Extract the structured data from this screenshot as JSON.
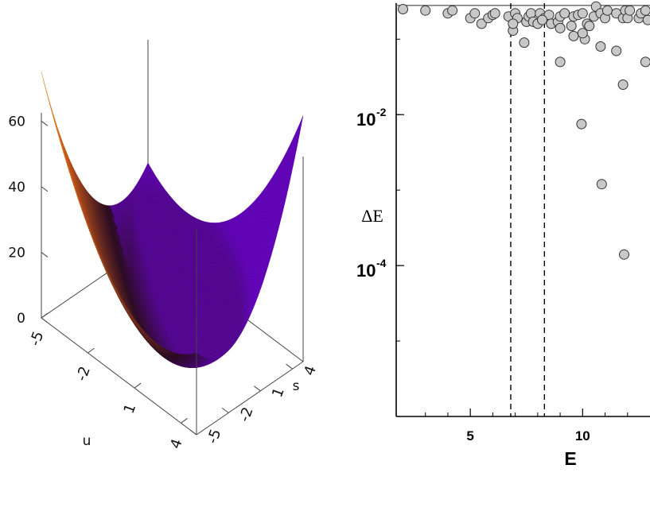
{
  "chart_data": [
    {
      "type": "surface",
      "title": "",
      "function": "z = u^2 + s^2 + u*s",
      "axes": {
        "u": {
          "label": "u",
          "range": [
            -5,
            5
          ],
          "tick_labels": [
            "-5",
            "-2",
            "1",
            "4"
          ]
        },
        "s": {
          "label": "s",
          "range": [
            -5,
            5
          ],
          "tick_labels": [
            "-5",
            "-2",
            "1",
            "4"
          ]
        },
        "z": {
          "label": "",
          "range": [
            0,
            62.5
          ],
          "tick_labels": [
            "0",
            "20",
            "40",
            "60"
          ]
        }
      },
      "colormap": [
        "#7a00ff",
        "#2a0a20",
        "#c85818",
        "#ffd040"
      ]
    },
    {
      "type": "scatter",
      "title": "",
      "xlabel": "E",
      "ylabel": "ΔE",
      "xlim": [
        1.7,
        13.0
      ],
      "ylim": [
        1e-06,
        0.3
      ],
      "yscale": "log",
      "x_ticks": [
        "5",
        "10"
      ],
      "y_ticks": [
        {
          "base": "10",
          "exponent": "-2"
        },
        {
          "base": "10",
          "exponent": "-4"
        }
      ],
      "vertical_lines": [
        6.8,
        8.3
      ],
      "horizontal_line": 0.28,
      "marker_fill": "#c8c8c8",
      "marker_edge": "#333333",
      "x": [
        2.0,
        3.0,
        4.0,
        4.2,
        5.0,
        5.2,
        5.5,
        5.8,
        6.0,
        6.1,
        6.7,
        6.9,
        7.0,
        7.1,
        7.5,
        7.6,
        7.7,
        7.8,
        8.0,
        8.1,
        8.3,
        8.5,
        8.6,
        8.9,
        9.0,
        9.2,
        9.5,
        9.6,
        9.8,
        10.0,
        10.2,
        10.3,
        10.5,
        10.6,
        10.8,
        11.0,
        11.1,
        11.5,
        11.8,
        11.9,
        12.0,
        12.1,
        12.5,
        12.6,
        12.8,
        12.9,
        7.4,
        8.2,
        9.0,
        9.6,
        10.1,
        10.8,
        11.5,
        11.8,
        12.8,
        9.0,
        9.95,
        10.85,
        11.85,
        6.9,
        10.0
      ],
      "y": [
        0.25,
        0.24,
        0.22,
        0.24,
        0.19,
        0.22,
        0.16,
        0.19,
        0.21,
        0.22,
        0.2,
        0.13,
        0.22,
        0.19,
        0.17,
        0.2,
        0.22,
        0.17,
        0.16,
        0.22,
        0.19,
        0.21,
        0.16,
        0.17,
        0.2,
        0.22,
        0.15,
        0.2,
        0.21,
        0.22,
        0.16,
        0.15,
        0.2,
        0.27,
        0.22,
        0.19,
        0.24,
        0.22,
        0.19,
        0.24,
        0.19,
        0.24,
        0.19,
        0.22,
        0.24,
        0.18,
        0.09,
        0.18,
        0.14,
        0.11,
        0.1,
        0.08,
        0.07,
        0.025,
        0.05,
        0.05,
        0.0075,
        0.0012,
        0.00014,
        0.16,
        0.12
      ]
    }
  ]
}
